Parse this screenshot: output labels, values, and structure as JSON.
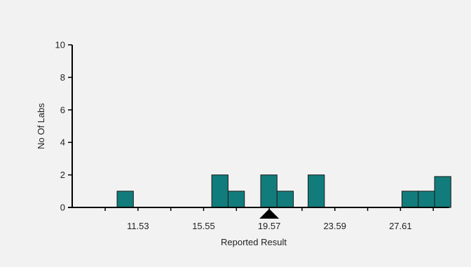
{
  "chart_data": {
    "type": "bar",
    "title": "",
    "xlabel": "Reported Result",
    "ylabel": "No Of Labs",
    "ylim": [
      0,
      10
    ],
    "y_ticks": [
      "0",
      "2",
      "4",
      "6",
      "8",
      "10"
    ],
    "x_ticks": [
      "11.53",
      "15.55",
      "19.57",
      "23.59",
      "27.61"
    ],
    "x_tick_values": [
      11.53,
      15.55,
      19.57,
      23.59,
      27.61
    ],
    "xlim": [
      7.5,
      30.6
    ],
    "bin_width": 1.0,
    "bins": [
      {
        "start": 10.25,
        "count": 1
      },
      {
        "start": 16.05,
        "count": 2
      },
      {
        "start": 17.05,
        "count": 1
      },
      {
        "start": 19.05,
        "count": 2
      },
      {
        "start": 20.05,
        "count": 1
      },
      {
        "start": 21.95,
        "count": 2
      },
      {
        "start": 27.7,
        "count": 1
      },
      {
        "start": 28.7,
        "count": 1
      },
      {
        "start": 29.7,
        "count": 1.9
      }
    ],
    "marker_value": 19.57,
    "bar_color": "#127c7c",
    "bar_edge_color": "#1a1a1a",
    "grid": false,
    "legend": "none"
  }
}
